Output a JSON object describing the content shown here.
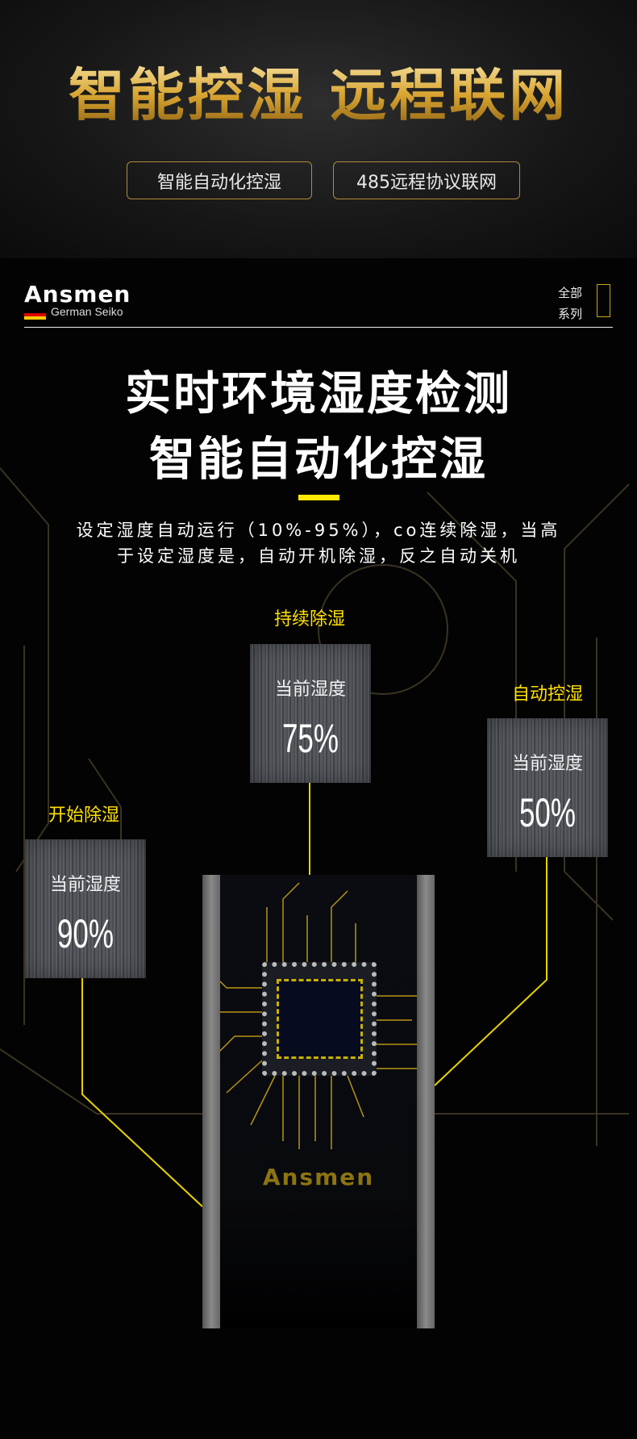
{
  "banner": {
    "title": "智能控湿  远程联网",
    "pills": [
      "智能自动化控湿",
      "485远程协议联网"
    ]
  },
  "brand": {
    "logo": "Ansmen",
    "sub": "German Seiko",
    "series_line1": "全部",
    "series_line2": "系列"
  },
  "headline": {
    "line1": "实时环境湿度检测",
    "line2": "智能自动化控湿"
  },
  "description": {
    "line1": "设定湿度自动运行（10%-95%），co连续除湿，当高",
    "line2": "于设定湿度是，自动开机除湿，反之自动关机"
  },
  "readings": [
    {
      "label": "持续除湿",
      "key": "当前湿度",
      "value": "75%"
    },
    {
      "label": "自动控湿",
      "key": "当前湿度",
      "value": "50%"
    },
    {
      "label": "开始除湿",
      "key": "当前湿度",
      "value": "90%"
    }
  ],
  "device": {
    "logo": "Ansmen"
  },
  "colors": {
    "accent": "#ffe100",
    "gold": "#d9a531"
  }
}
